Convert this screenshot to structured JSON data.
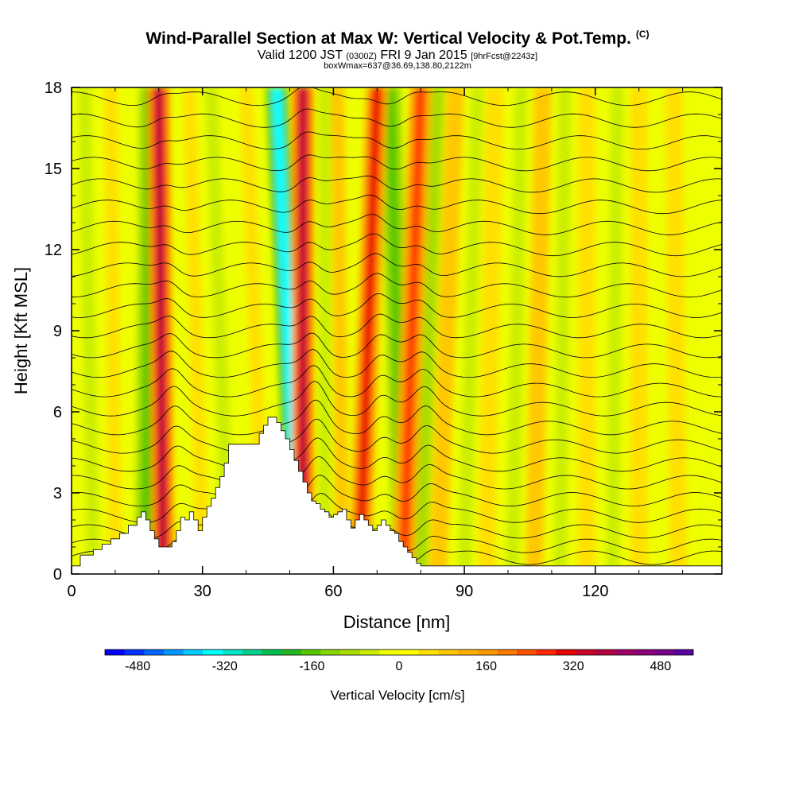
{
  "title": {
    "main": "Wind-Parallel Section at Max W: Vertical Velocity & Pot.Temp.",
    "copyright": "(C)",
    "valid_prefix": "Valid 1200 JST",
    "valid_utc": "(0300Z)",
    "valid_date": "FRI 9 Jan 2015",
    "forecast": "[9hrFcst@2243z]",
    "box": "boxWmax=637@36.69,138.80,2122m"
  },
  "chart_data": {
    "type": "heatmap",
    "xlabel": "Distance [nm]",
    "ylabel": "Height [Kft MSL]",
    "xlim": [
      0,
      149
    ],
    "ylim": [
      0,
      18
    ],
    "x_ticks": [
      0,
      30,
      60,
      90,
      120
    ],
    "y_ticks": [
      0,
      3,
      6,
      9,
      12,
      15,
      18
    ],
    "x_tick_labels": [
      "0",
      "30",
      "60",
      "90",
      "120"
    ],
    "y_tick_labels": [
      "0",
      "3",
      "6",
      "9",
      "12",
      "15",
      "18"
    ],
    "colorbar": {
      "title": "Vertical Velocity [cm/s]",
      "ticks": [
        "-480",
        "-320",
        "-160",
        "0",
        "160",
        "320",
        "480"
      ],
      "tick_values": [
        -480,
        -320,
        -160,
        0,
        160,
        320,
        480
      ],
      "range": [
        -540,
        540
      ],
      "colors": [
        "#0000ff",
        "#0033ff",
        "#0066ff",
        "#0099ff",
        "#00ccff",
        "#00ffff",
        "#00e6c8",
        "#00d28c",
        "#00c050",
        "#22b822",
        "#55c800",
        "#88d800",
        "#aadd00",
        "#ccee00",
        "#eeff00",
        "#ffff00",
        "#ffe000",
        "#ffc800",
        "#ffb000",
        "#ff9800",
        "#ff7a00",
        "#ff5000",
        "#ff2800",
        "#e60000",
        "#c80028",
        "#b4003c",
        "#a00064",
        "#8c0078",
        "#78008c",
        "#5a00a0"
      ]
    },
    "terrain_profile": {
      "x_nm": [
        0,
        1,
        2,
        3,
        5,
        7,
        9,
        11,
        13,
        15,
        16,
        17,
        18,
        19,
        20,
        21,
        23,
        24,
        25,
        26,
        27,
        28,
        29,
        30,
        31,
        32,
        33,
        34,
        35,
        36,
        37,
        38,
        39,
        40,
        41,
        42,
        43,
        44,
        45,
        46,
        47,
        48,
        49,
        50,
        51,
        52,
        53,
        54,
        55,
        56,
        57,
        58,
        59,
        60,
        61,
        62,
        63,
        64,
        65,
        66,
        67,
        68,
        69,
        70,
        71,
        72,
        73,
        74,
        75,
        76,
        77,
        78,
        79,
        80,
        81,
        82,
        83,
        84,
        85,
        86,
        149
      ],
      "height_kft": [
        0.3,
        0.3,
        0.7,
        0.7,
        0.9,
        1.1,
        1.3,
        1.5,
        1.8,
        2.1,
        2.3,
        2.0,
        1.6,
        1.3,
        1.0,
        1.0,
        1.2,
        1.6,
        2.1,
        2.0,
        2.3,
        2.0,
        1.6,
        2.1,
        2.5,
        2.8,
        3.2,
        3.6,
        4.1,
        4.8,
        4.8,
        4.8,
        4.8,
        4.8,
        4.8,
        4.8,
        5.2,
        5.5,
        5.8,
        5.8,
        5.6,
        5.3,
        5.0,
        4.6,
        4.2,
        3.8,
        3.4,
        3.0,
        2.7,
        2.6,
        2.4,
        2.3,
        2.1,
        2.2,
        2.3,
        2.4,
        2.0,
        1.7,
        2.0,
        2.2,
        2.0,
        1.8,
        1.6,
        1.8,
        2.0,
        1.8,
        1.6,
        1.5,
        1.2,
        1.0,
        0.8,
        0.6,
        0.4,
        0.3,
        0.3,
        0.3,
        0.3,
        0.3,
        0.3,
        0.3,
        0.3
      ]
    },
    "updraft_bands": [
      {
        "x_top_nm": 20,
        "x_bottom_nm": 21,
        "peak_cms": 360
      },
      {
        "x_top_nm": 53,
        "x_bottom_nm": 53,
        "peak_cms": 380
      },
      {
        "x_top_nm": 70,
        "x_bottom_nm": 66,
        "peak_cms": 300
      },
      {
        "x_top_nm": 80,
        "x_bottom_nm": 76,
        "peak_cms": 260
      }
    ],
    "downdraft_bands": [
      {
        "x_top_nm": 47,
        "x_bottom_nm": 52,
        "peak_cms": -330
      },
      {
        "x_top_nm": 18,
        "x_bottom_nm": 17,
        "peak_cms": -160
      },
      {
        "x_top_nm": 73,
        "x_bottom_nm": 76,
        "peak_cms": -180
      }
    ],
    "theta_isentropes": {
      "label": "potential temperature contours (black)",
      "count": 26
    },
    "grid": false
  }
}
